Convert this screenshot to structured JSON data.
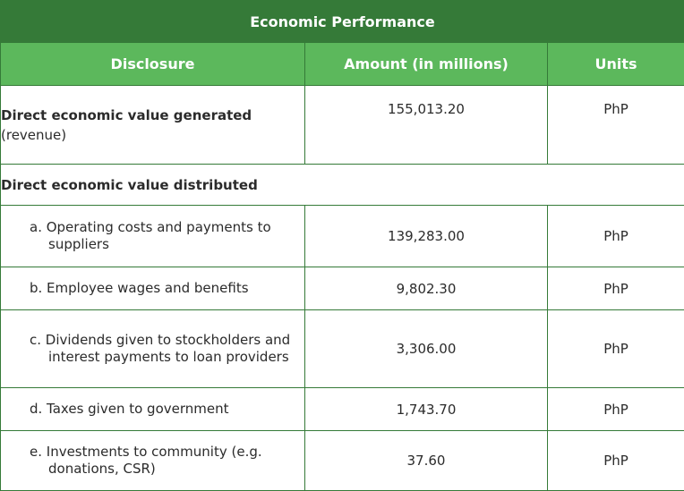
{
  "table": {
    "title": "Economic Performance",
    "headers": {
      "disclosure": "Disclosure",
      "amount": "Amount (in millions)",
      "units": "Units"
    },
    "rows": {
      "generated": {
        "label_bold": "Direct economic value generated",
        "label_rest": "(revenue)",
        "amount": "155,013.20",
        "unit": "PhP"
      },
      "distributed_header": "Direct economic value distributed",
      "a": {
        "label": "a. Operating costs and payments to suppliers",
        "amount": "139,283.00",
        "unit": "PhP"
      },
      "b": {
        "label": "b. Employee wages and benefits",
        "amount": "9,802.30",
        "unit": "PhP"
      },
      "c": {
        "label": "c. Dividends given to stockholders and interest payments to loan providers",
        "amount": "3,306.00",
        "unit": "PhP"
      },
      "d": {
        "label": "d. Taxes given to government",
        "amount": "1,743.70",
        "unit": "PhP"
      },
      "e": {
        "label": "e. Investments to community (e.g. donations, CSR)",
        "amount": "37.60",
        "unit": "PhP"
      }
    }
  }
}
